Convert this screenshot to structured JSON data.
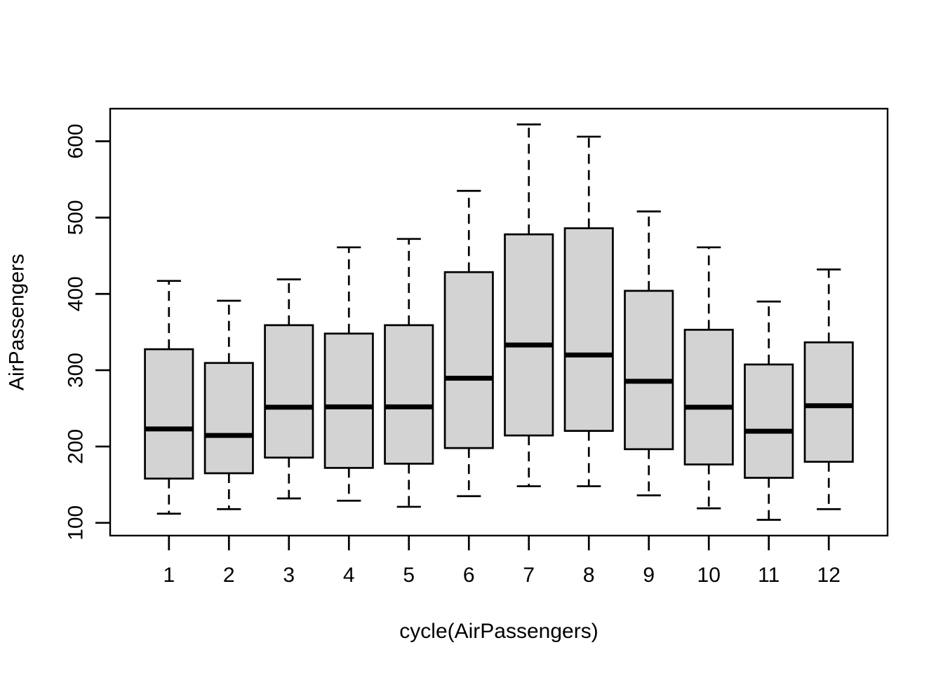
{
  "chart_data": {
    "type": "boxplot",
    "title": "",
    "xlabel": "cycle(AirPassengers)",
    "ylabel": "AirPassengers",
    "x_categories": [
      "1",
      "2",
      "3",
      "4",
      "5",
      "6",
      "7",
      "8",
      "9",
      "10",
      "11",
      "12"
    ],
    "y_ticks": [
      100,
      200,
      300,
      400,
      500,
      600
    ],
    "ylim": [
      83.3,
      642.7
    ],
    "xlim": [
      0.02,
      12.98
    ],
    "grid": "off",
    "legend": "none",
    "colors": {
      "box_fill": "#d3d3d3",
      "line": "#000000",
      "background": "#ffffff"
    },
    "boxes": [
      {
        "category": "1",
        "min": 112,
        "q1": 158,
        "median": 223,
        "q3": 327.5,
        "max": 417,
        "outliers": []
      },
      {
        "category": "2",
        "min": 118,
        "q1": 165,
        "median": 214.5,
        "q3": 309.5,
        "max": 391,
        "outliers": []
      },
      {
        "category": "3",
        "min": 132,
        "q1": 185.5,
        "median": 251.5,
        "q3": 359,
        "max": 419,
        "outliers": []
      },
      {
        "category": "4",
        "min": 129,
        "q1": 172,
        "median": 252,
        "q3": 348,
        "max": 461,
        "outliers": []
      },
      {
        "category": "5",
        "min": 121,
        "q1": 177.5,
        "median": 252,
        "q3": 359,
        "max": 472,
        "outliers": []
      },
      {
        "category": "6",
        "min": 135,
        "q1": 198,
        "median": 289.5,
        "q3": 428.5,
        "max": 535,
        "outliers": []
      },
      {
        "category": "7",
        "min": 148,
        "q1": 214.5,
        "median": 333,
        "q3": 478,
        "max": 622,
        "outliers": []
      },
      {
        "category": "8",
        "min": 148,
        "q1": 220.5,
        "median": 320,
        "q3": 486,
        "max": 606,
        "outliers": []
      },
      {
        "category": "9",
        "min": 136,
        "q1": 196.5,
        "median": 285.5,
        "q3": 404,
        "max": 508,
        "outliers": []
      },
      {
        "category": "10",
        "min": 119,
        "q1": 176.5,
        "median": 251.5,
        "q3": 353,
        "max": 461,
        "outliers": []
      },
      {
        "category": "11",
        "min": 104,
        "q1": 159,
        "median": 220,
        "q3": 307.5,
        "max": 390,
        "outliers": []
      },
      {
        "category": "12",
        "min": 118,
        "q1": 180,
        "median": 253.5,
        "q3": 336.5,
        "max": 432,
        "outliers": []
      }
    ]
  }
}
